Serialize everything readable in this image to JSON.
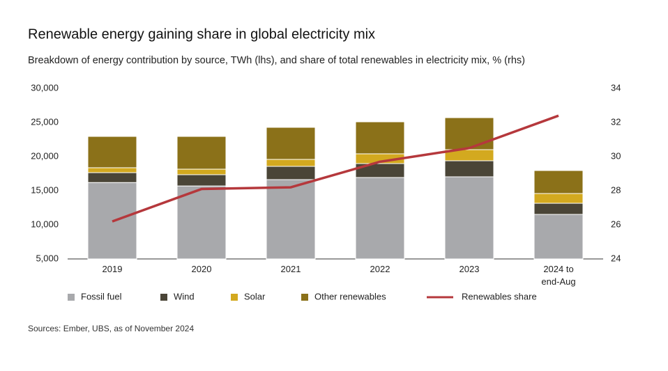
{
  "chart_data": {
    "type": "bar",
    "stacked": true,
    "title": "Renewable energy gaining share in global electricity mix",
    "subtitle": "Breakdown of energy contribution by source, TWh (lhs), and share of total renewables in electricity mix, % (rhs)",
    "source": "Sources: Ember, UBS, as of November 2024",
    "categories": [
      "2019",
      "2020",
      "2021",
      "2022",
      "2023",
      "2024 to end-Aug"
    ],
    "series": [
      {
        "name": "Fossil fuel",
        "color": "#a8a9ac",
        "values": [
          16200,
          15700,
          16630,
          16940,
          17040,
          11530
        ]
      },
      {
        "name": "Wind",
        "color": "#4a4537",
        "values": [
          1450,
          1650,
          1940,
          2040,
          2350,
          1630
        ]
      },
      {
        "name": "Solar",
        "color": "#d3a91f",
        "values": [
          720,
          810,
          1020,
          1430,
          1630,
          1430
        ]
      },
      {
        "name": "Other renewables",
        "color": "#8b7119",
        "values": [
          4590,
          4800,
          4700,
          4690,
          4690,
          3370
        ]
      },
      {
        "name": "Renewables share",
        "color": "#b5383c",
        "type": "line",
        "axis": "y2",
        "values": [
          26.2,
          28.1,
          28.2,
          29.7,
          30.5,
          32.4
        ]
      }
    ],
    "ylim": [
      5000,
      30000
    ],
    "yticks": [
      {
        "value": 5000,
        "label": "5,000"
      },
      {
        "value": 10000,
        "label": "10,000"
      },
      {
        "value": 15000,
        "label": "15,000"
      },
      {
        "value": 20000,
        "label": "20,000"
      },
      {
        "value": 25000,
        "label": "25,000"
      },
      {
        "value": 30000,
        "label": "30,000"
      }
    ],
    "y2lim": [
      24,
      34
    ],
    "y2ticks": [
      24,
      26,
      28,
      30,
      32,
      34
    ],
    "grid": false,
    "legend": "bottom"
  }
}
